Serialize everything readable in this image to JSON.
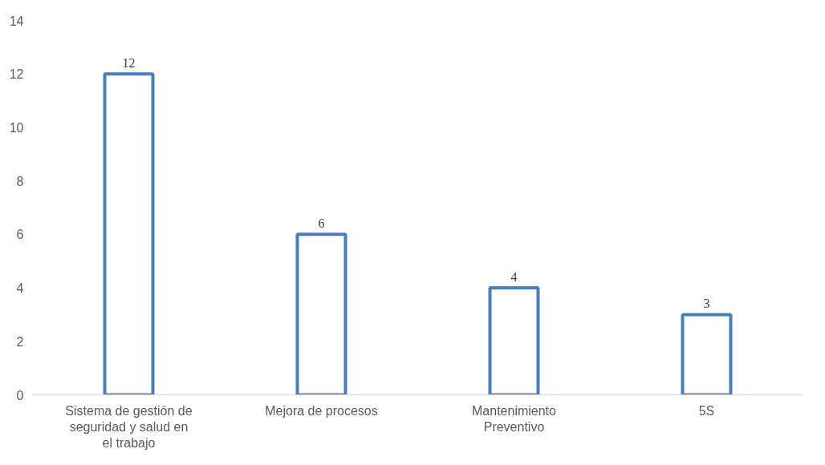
{
  "chart_data": {
    "type": "bar",
    "categories": [
      "Sistema de gestión de seguridad y salud en el trabajo",
      "Mejora de procesos",
      "Mantenimiento Preventivo",
      "5S"
    ],
    "values": [
      12,
      6,
      4,
      3
    ],
    "color": "#4a7ebb",
    "ylim": [
      0,
      14
    ],
    "yticks": [
      0,
      2,
      4,
      6,
      8,
      10,
      12,
      14
    ],
    "data_labels": true,
    "grid": false
  }
}
